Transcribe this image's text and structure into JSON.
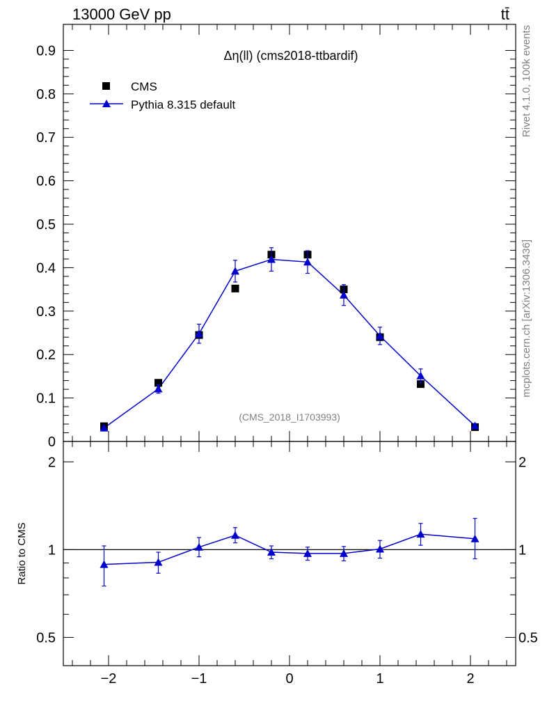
{
  "header": {
    "energy_label": "13000 GeV pp",
    "process_label": "tt̄"
  },
  "side_labels": {
    "rivet": "Rivet 4.1.0,  100k events",
    "mcplots": "mcplots.cern.ch [arXiv:1306.3436]"
  },
  "colors": {
    "data": "#000000",
    "mc": "#0000cc",
    "watermark": "#808080"
  },
  "chart_data": [
    {
      "type": "scatter",
      "panel": "main",
      "title": "Δη(ll) (cms2018-ttbardif)",
      "watermark": "(CMS_2018_I1703993)",
      "xlabel": "",
      "ylabel": "",
      "xlim": [
        -2.5,
        2.5
      ],
      "ylim": [
        0,
        0.96
      ],
      "y_ticks": [
        0,
        0.1,
        0.2,
        0.3,
        0.4,
        0.5,
        0.6,
        0.7,
        0.8,
        0.9
      ],
      "y_tick_labels": [
        "0",
        "0.1",
        "0.2",
        "0.3",
        "0.4",
        "0.5",
        "0.6",
        "0.7",
        "0.8",
        "0.9"
      ],
      "legend_position": "top-left",
      "series": [
        {
          "name": "CMS",
          "marker": "square",
          "x": [
            -2.05,
            -1.45,
            -1.0,
            -0.6,
            -0.2,
            0.2,
            0.6,
            1.0,
            1.45,
            2.05
          ],
          "y": [
            0.035,
            0.135,
            0.245,
            0.352,
            0.43,
            0.43,
            0.35,
            0.24,
            0.132,
            0.033
          ],
          "err": [
            0.003,
            0.006,
            0.009,
            0.008,
            0.01,
            0.01,
            0.01,
            0.009,
            0.006,
            0.004
          ]
        },
        {
          "name": "Pythia 8.315 default",
          "marker": "triangle",
          "x": [
            -2.05,
            -1.45,
            -1.0,
            -0.6,
            -0.2,
            0.2,
            0.6,
            1.0,
            1.45,
            2.05
          ],
          "y": [
            0.031,
            0.121,
            0.248,
            0.392,
            0.419,
            0.413,
            0.337,
            0.243,
            0.151,
            0.036
          ],
          "err": [
            0.004,
            0.01,
            0.022,
            0.025,
            0.027,
            0.026,
            0.024,
            0.02,
            0.016,
            0.005
          ]
        }
      ]
    },
    {
      "type": "line",
      "panel": "ratio",
      "ylabel": "Ratio to CMS",
      "xlim": [
        -2.5,
        2.5
      ],
      "ylim": [
        0.4,
        2.35
      ],
      "y_ticks": [
        0.5,
        1,
        2
      ],
      "y_tick_labels": [
        "0.5",
        "1",
        "2"
      ],
      "x_ticks": [
        -2,
        -1,
        0,
        1,
        2
      ],
      "x_tick_labels": [
        "−2",
        "−1",
        "0",
        "1",
        "2"
      ],
      "reference_line": 1,
      "series": [
        {
          "name": "Pythia 8.315 default",
          "x": [
            -2.05,
            -1.45,
            -1.0,
            -0.6,
            -0.2,
            0.2,
            0.6,
            1.0,
            1.45,
            2.05
          ],
          "y": [
            0.89,
            0.905,
            1.02,
            1.12,
            0.98,
            0.97,
            0.97,
            1.005,
            1.13,
            1.09
          ],
          "err_low": [
            0.14,
            0.075,
            0.075,
            0.065,
            0.05,
            0.05,
            0.055,
            0.07,
            0.095,
            0.16
          ],
          "err_high": [
            0.14,
            0.075,
            0.08,
            0.07,
            0.05,
            0.05,
            0.055,
            0.07,
            0.1,
            0.19
          ]
        }
      ]
    }
  ]
}
